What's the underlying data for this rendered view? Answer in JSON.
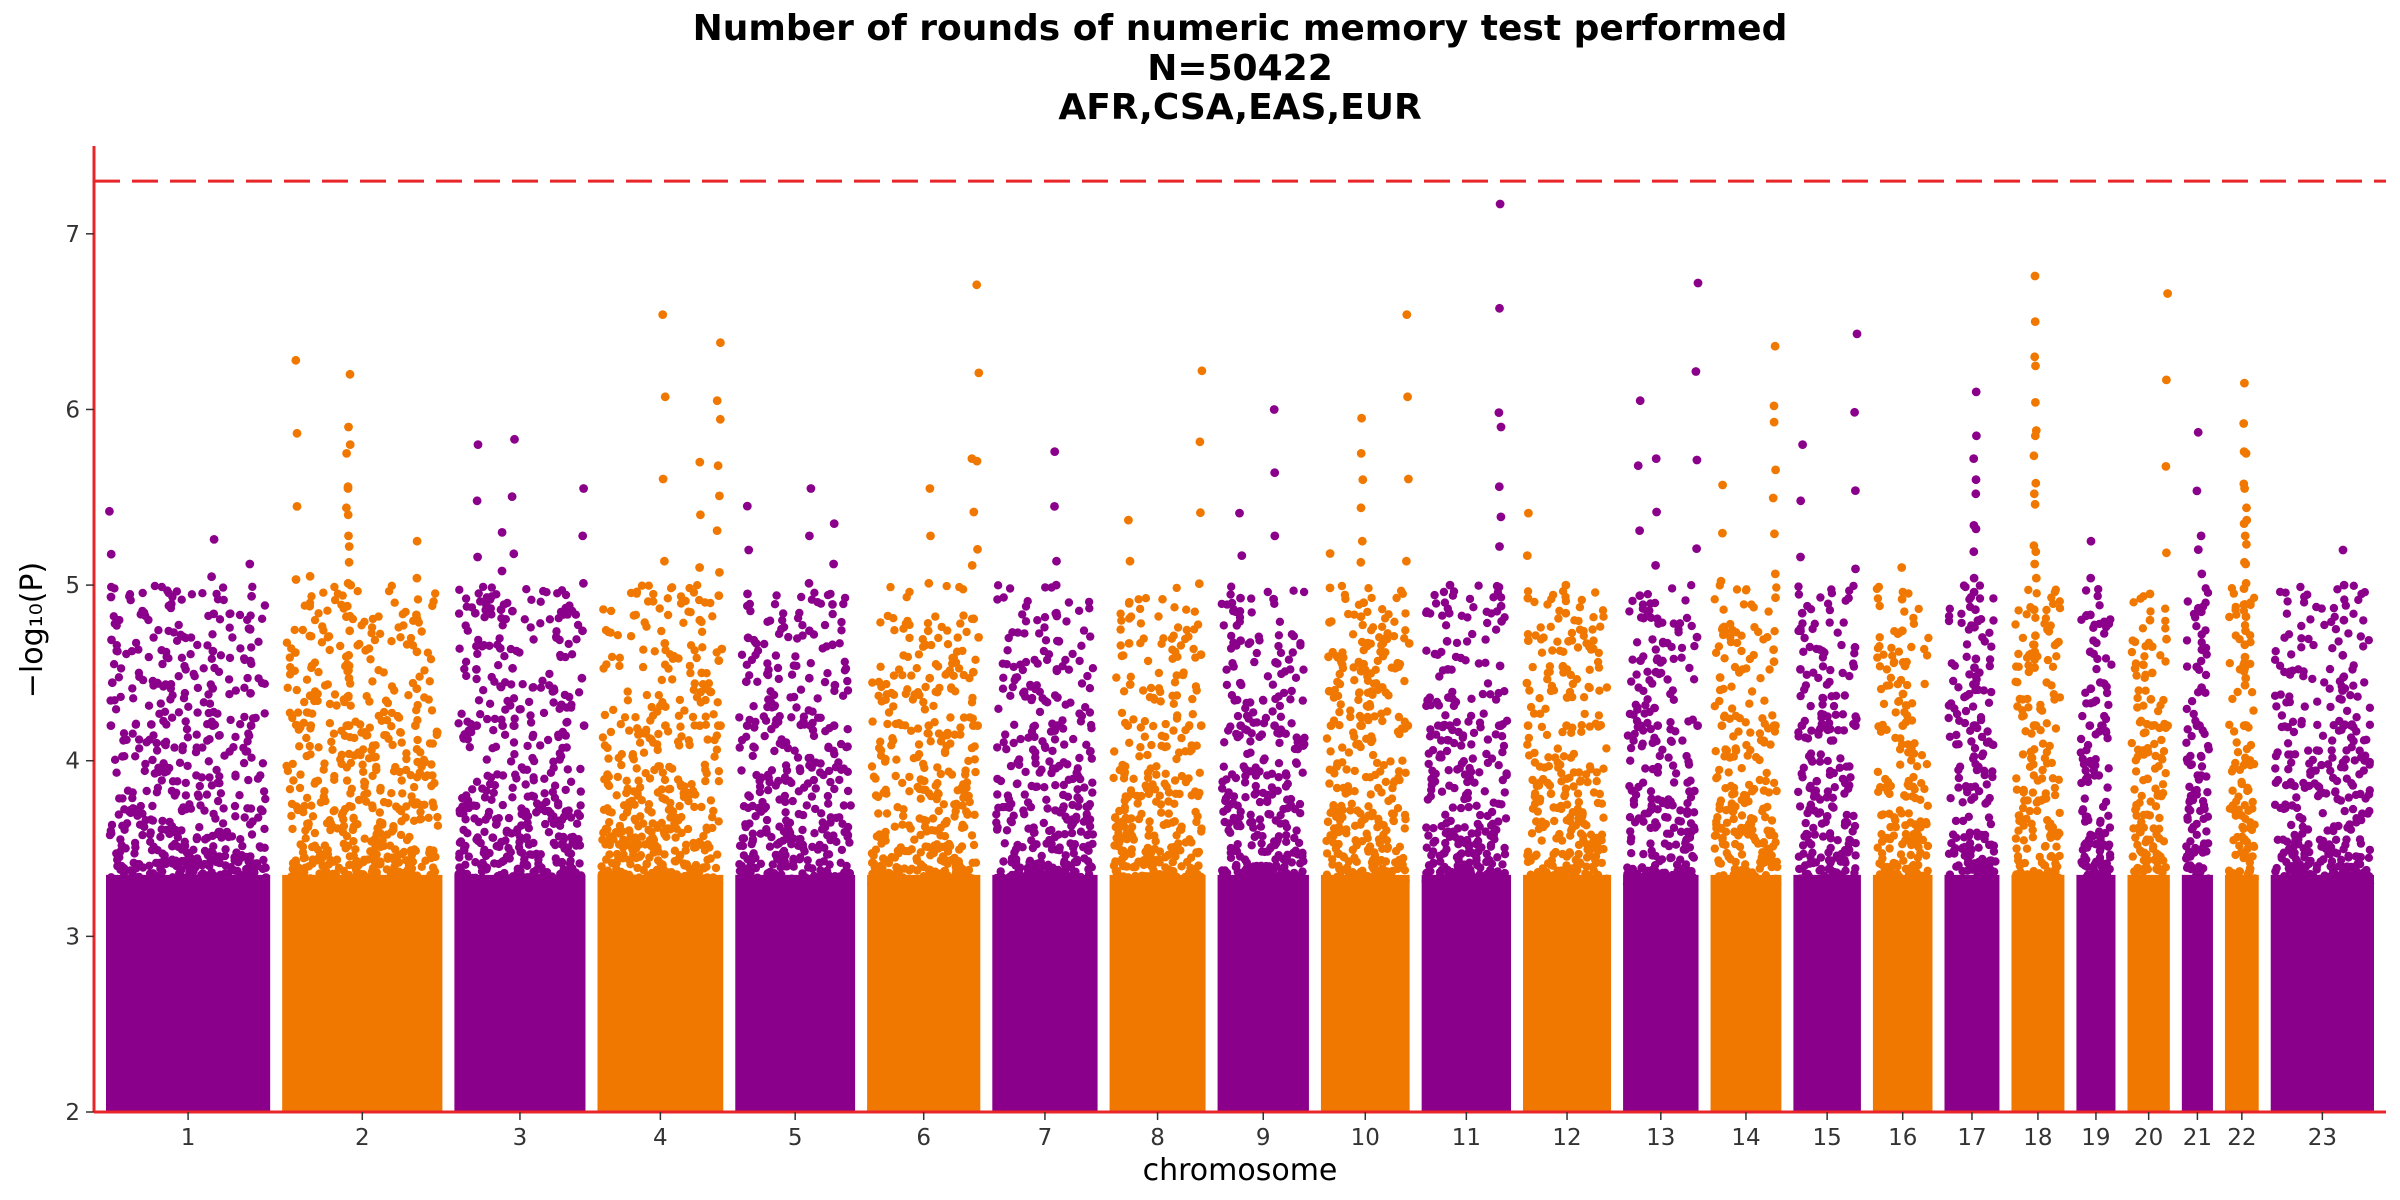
{
  "chart_data": {
    "type": "scatter",
    "title_lines": [
      "Number of rounds of numeric memory test performed",
      "N=50422",
      "AFR,CSA,EAS,EUR"
    ],
    "xlabel": "chromosome",
    "ylabel": "−log₁₀(P)",
    "ylim": [
      2,
      7.5
    ],
    "yticks": [
      2,
      3,
      4,
      5,
      6,
      7
    ],
    "significance_threshold": 7.3,
    "colors": {
      "odd": "#8b008b",
      "even": "#f07800",
      "axis": "#e8262a",
      "threshold": "#e8262a"
    },
    "chromosomes": [
      {
        "label": "1",
        "length": 248,
        "peak": 5.42,
        "hits": [
          [
            0.03,
            5.42
          ],
          [
            0.65,
            5.26
          ],
          [
            0.88,
            5.12
          ]
        ]
      },
      {
        "label": "2",
        "length": 242,
        "peak": 6.28,
        "hits": [
          [
            0.09,
            6.28
          ],
          [
            0.18,
            5.05
          ],
          [
            0.42,
            6.2
          ],
          [
            0.41,
            5.9
          ],
          [
            0.41,
            5.75
          ],
          [
            0.42,
            5.55
          ],
          [
            0.84,
            5.25
          ]
        ]
      },
      {
        "label": "3",
        "length": 198,
        "peak": 5.83,
        "hits": [
          [
            0.17,
            5.8
          ],
          [
            0.36,
            5.3
          ],
          [
            0.45,
            5.83
          ],
          [
            0.98,
            5.55
          ]
        ]
      },
      {
        "label": "4",
        "length": 190,
        "peak": 6.54,
        "hits": [
          [
            0.53,
            6.54
          ],
          [
            0.82,
            5.7
          ],
          [
            0.98,
            6.38
          ],
          [
            0.96,
            6.05
          ]
        ]
      },
      {
        "label": "5",
        "length": 181,
        "peak": 5.55,
        "hits": [
          [
            0.1,
            5.45
          ],
          [
            0.62,
            5.55
          ],
          [
            0.82,
            5.35
          ]
        ]
      },
      {
        "label": "6",
        "length": 171,
        "peak": 6.71,
        "hits": [
          [
            0.55,
            5.55
          ],
          [
            0.93,
            5.72
          ],
          [
            0.98,
            6.71
          ]
        ]
      },
      {
        "label": "7",
        "length": 159,
        "peak": 5.76,
        "hits": [
          [
            0.6,
            5.76
          ],
          [
            0.62,
            5.0
          ]
        ]
      },
      {
        "label": "8",
        "length": 145,
        "peak": 6.22,
        "hits": [
          [
            0.2,
            5.37
          ],
          [
            0.95,
            6.22
          ]
        ]
      },
      {
        "label": "9",
        "length": 138,
        "peak": 6.0,
        "hits": [
          [
            0.25,
            5.41
          ],
          [
            0.63,
            6.0
          ]
        ]
      },
      {
        "label": "10",
        "length": 134,
        "peak": 6.54,
        "hits": [
          [
            0.1,
            5.18
          ],
          [
            0.47,
            5.95
          ],
          [
            0.45,
            5.75
          ],
          [
            0.98,
            6.54
          ]
        ]
      },
      {
        "label": "11",
        "length": 135,
        "peak": 7.17,
        "hits": [
          [
            0.3,
            5.0
          ],
          [
            0.88,
            7.17
          ],
          [
            0.88,
            5.9
          ]
        ]
      },
      {
        "label": "12",
        "length": 133,
        "peak": 5.41,
        "hits": [
          [
            0.05,
            5.41
          ],
          [
            0.5,
            5.0
          ]
        ]
      },
      {
        "label": "13",
        "length": 114,
        "peak": 6.72,
        "hits": [
          [
            0.22,
            6.05
          ],
          [
            0.45,
            5.72
          ],
          [
            0.98,
            6.72
          ]
        ]
      },
      {
        "label": "14",
        "length": 107,
        "peak": 6.36,
        "hits": [
          [
            0.15,
            5.57
          ],
          [
            0.9,
            6.36
          ],
          [
            0.9,
            6.02
          ]
        ]
      },
      {
        "label": "15",
        "length": 102,
        "peak": 6.43,
        "hits": [
          [
            0.12,
            5.8
          ],
          [
            0.92,
            6.43
          ]
        ]
      },
      {
        "label": "16",
        "length": 90,
        "peak": 5.1,
        "hits": [
          [
            0.5,
            5.1
          ]
        ]
      },
      {
        "label": "17",
        "length": 83,
        "peak": 6.1,
        "hits": [
          [
            0.55,
            6.1
          ],
          [
            0.56,
            5.85
          ],
          [
            0.56,
            5.6
          ]
        ]
      },
      {
        "label": "18",
        "length": 80,
        "peak": 6.76,
        "hits": [
          [
            0.45,
            6.76
          ],
          [
            0.45,
            6.5
          ],
          [
            0.45,
            6.3
          ],
          [
            0.45,
            5.85
          ]
        ]
      },
      {
        "label": "19",
        "length": 59,
        "peak": 5.25,
        "hits": [
          [
            0.35,
            5.25
          ]
        ]
      },
      {
        "label": "20",
        "length": 64,
        "peak": 6.66,
        "hits": [
          [
            0.92,
            6.66
          ],
          [
            0.55,
            4.95
          ]
        ]
      },
      {
        "label": "21",
        "length": 47,
        "peak": 5.87,
        "hits": [
          [
            0.5,
            5.87
          ],
          [
            0.6,
            5.28
          ]
        ]
      },
      {
        "label": "22",
        "length": 51,
        "peak": 6.15,
        "hits": [
          [
            0.6,
            6.15
          ],
          [
            0.6,
            5.92
          ],
          [
            0.6,
            5.75
          ],
          [
            0.6,
            5.55
          ],
          [
            0.6,
            5.35
          ]
        ]
      },
      {
        "label": "23",
        "length": 156,
        "peak": 5.2,
        "hits": [
          [
            0.7,
            5.2
          ]
        ]
      }
    ]
  }
}
